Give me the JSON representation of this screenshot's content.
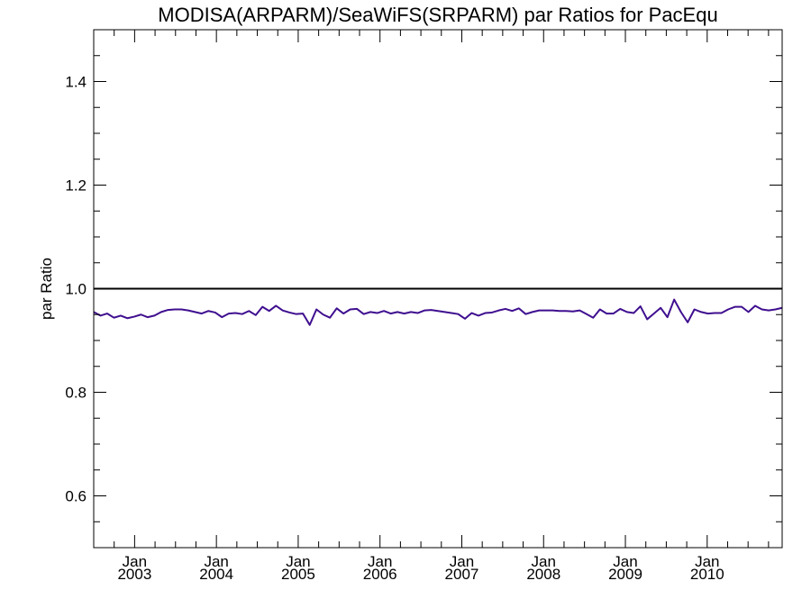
{
  "chart_data": {
    "type": "line",
    "title": "MODISA(ARPARM)/SeaWiFS(SRPARM)  par Ratios for PacEqu",
    "xlabel": "",
    "ylabel": "par Ratio",
    "ylim": [
      0.5,
      1.5
    ],
    "xlim": [
      "2002-07",
      "2010-12"
    ],
    "grid": false,
    "yticks": [
      {
        "value": 0.6,
        "label": "0.6"
      },
      {
        "value": 0.8,
        "label": "0.8"
      },
      {
        "value": 1.0,
        "label": "1.0"
      },
      {
        "value": 1.2,
        "label": "1.2"
      },
      {
        "value": 1.4,
        "label": "1.4"
      }
    ],
    "xticks": [
      {
        "date": "2003-01",
        "month": "Jan",
        "year": "2003"
      },
      {
        "date": "2004-01",
        "month": "Jan",
        "year": "2004"
      },
      {
        "date": "2005-01",
        "month": "Jan",
        "year": "2005"
      },
      {
        "date": "2006-01",
        "month": "Jan",
        "year": "2006"
      },
      {
        "date": "2007-01",
        "month": "Jan",
        "year": "2007"
      },
      {
        "date": "2008-01",
        "month": "Jan",
        "year": "2008"
      },
      {
        "date": "2009-01",
        "month": "Jan",
        "year": "2009"
      },
      {
        "date": "2010-01",
        "month": "Jan",
        "year": "2010"
      }
    ],
    "reference_line": {
      "y": 1.0,
      "color": "#000000"
    },
    "series": [
      {
        "color": "#3f0f8f",
        "start": "2002-07",
        "step": "month",
        "values": [
          0.955,
          0.948,
          0.952,
          0.944,
          0.948,
          0.943,
          0.946,
          0.95,
          0.945,
          0.948,
          0.955,
          0.959,
          0.96,
          0.96,
          0.958,
          0.955,
          0.952,
          0.957,
          0.954,
          0.945,
          0.952,
          0.953,
          0.951,
          0.957,
          0.949,
          0.965,
          0.957,
          0.967,
          0.958,
          0.954,
          0.951,
          0.952,
          0.93,
          0.96,
          0.95,
          0.944,
          0.962,
          0.952,
          0.96,
          0.961,
          0.951,
          0.955,
          0.953,
          0.957,
          0.952,
          0.955,
          0.952,
          0.955,
          0.953,
          0.958,
          0.959,
          0.957,
          0.955,
          0.953,
          0.951,
          0.942,
          0.953,
          0.948,
          0.953,
          0.954,
          0.958,
          0.961,
          0.957,
          0.962,
          0.951,
          0.955,
          0.958,
          0.958,
          0.958,
          0.957,
          0.957,
          0.956,
          0.958,
          0.951,
          0.944,
          0.96,
          0.952,
          0.952,
          0.961,
          0.955,
          0.953,
          0.966,
          0.941,
          0.952,
          0.963,
          0.945,
          0.979,
          0.955,
          0.935,
          0.96,
          0.955,
          0.952,
          0.953,
          0.953,
          0.96,
          0.965,
          0.965,
          0.955,
          0.967,
          0.96,
          0.958,
          0.96,
          0.963
        ]
      }
    ]
  }
}
